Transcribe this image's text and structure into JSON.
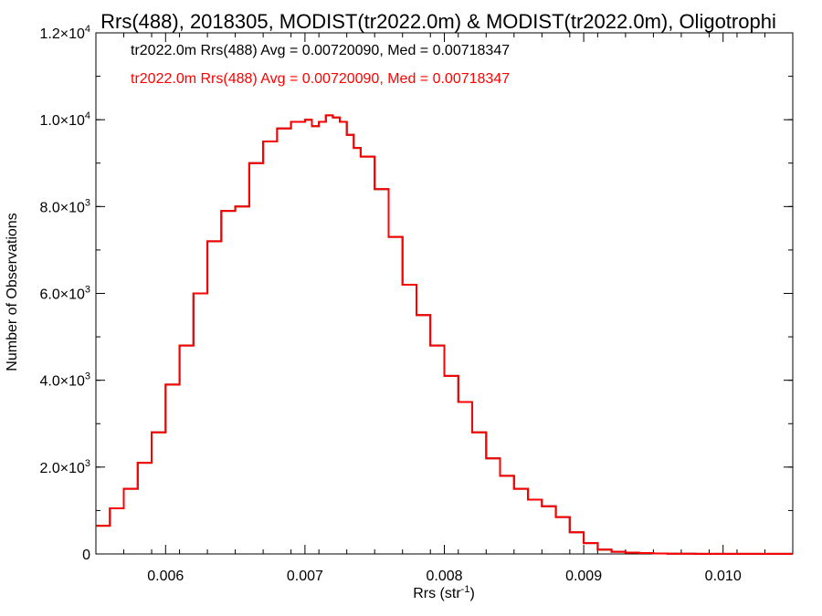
{
  "chart_data": {
    "type": "line",
    "title": "Rrs(488), 2018305, MODIST(tr2022.0m) & MODIST(tr2022.0m), Oligotrophi",
    "xlabel": "Rrs (str",
    "xlabel_sup": "-1",
    "xlabel_close": ")",
    "ylabel": "Number of Observations",
    "xlim": [
      0.0055,
      0.0105
    ],
    "ylim": [
      0,
      12000
    ],
    "x_ticks": [
      {
        "value": 0.006,
        "label": "0.006"
      },
      {
        "value": 0.007,
        "label": "0.007"
      },
      {
        "value": 0.008,
        "label": "0.008"
      },
      {
        "value": 0.009,
        "label": "0.009"
      },
      {
        "value": 0.01,
        "label": "0.010"
      }
    ],
    "y_ticks": [
      {
        "value": 0,
        "mant": "0",
        "exp": ""
      },
      {
        "value": 2000,
        "mant": "2.0×10",
        "exp": "3"
      },
      {
        "value": 4000,
        "mant": "4.0×10",
        "exp": "3"
      },
      {
        "value": 6000,
        "mant": "6.0×10",
        "exp": "3"
      },
      {
        "value": 8000,
        "mant": "8.0×10",
        "exp": "3"
      },
      {
        "value": 10000,
        "mant": "1.0×10",
        "exp": "4"
      },
      {
        "value": 12000,
        "mant": "1.2×10",
        "exp": "4"
      }
    ],
    "annotations": [
      {
        "text": "tr2022.0m Rrs(488) Avg = 0.00720090, Med = 0.00718347",
        "color": "#000000"
      },
      {
        "text": "tr2022.0m Rrs(488) Avg = 0.00720090, Med = 0.00718347",
        "color": "#ff0000"
      }
    ],
    "series": [
      {
        "color": "#000000",
        "x": [
          0.0055,
          0.0056,
          0.0057,
          0.0058,
          0.0059,
          0.006,
          0.0061,
          0.0062,
          0.0063,
          0.0064,
          0.0065,
          0.0066,
          0.0067,
          0.0068,
          0.0069,
          0.007,
          0.00705,
          0.0071,
          0.00715,
          0.0072,
          0.00725,
          0.0073,
          0.00735,
          0.0074,
          0.0075,
          0.0076,
          0.0077,
          0.0078,
          0.0079,
          0.008,
          0.0081,
          0.0082,
          0.0083,
          0.0084,
          0.0085,
          0.0086,
          0.0087,
          0.0088,
          0.0089,
          0.009,
          0.0091,
          0.0092,
          0.0093,
          0.0094,
          0.0095,
          0.0096,
          0.0098,
          0.01,
          0.0102,
          0.0105
        ],
        "y": [
          650,
          1050,
          1500,
          2100,
          2800,
          3900,
          4800,
          6000,
          7200,
          7900,
          8000,
          9000,
          9500,
          9800,
          9950,
          10000,
          9850,
          9950,
          10100,
          10050,
          9950,
          9650,
          9350,
          9150,
          8400,
          7300,
          6200,
          5500,
          4800,
          4100,
          3500,
          2800,
          2200,
          1800,
          1500,
          1250,
          1100,
          850,
          500,
          250,
          100,
          50,
          30,
          20,
          10,
          5,
          3,
          2,
          2,
          2
        ]
      },
      {
        "color": "#ff0000",
        "x": [
          0.0055,
          0.0056,
          0.0057,
          0.0058,
          0.0059,
          0.006,
          0.0061,
          0.0062,
          0.0063,
          0.0064,
          0.0065,
          0.0066,
          0.0067,
          0.0068,
          0.0069,
          0.007,
          0.00705,
          0.0071,
          0.00715,
          0.0072,
          0.00725,
          0.0073,
          0.00735,
          0.0074,
          0.0075,
          0.0076,
          0.0077,
          0.0078,
          0.0079,
          0.008,
          0.0081,
          0.0082,
          0.0083,
          0.0084,
          0.0085,
          0.0086,
          0.0087,
          0.0088,
          0.0089,
          0.009,
          0.0091,
          0.0092,
          0.0093,
          0.0094,
          0.0095,
          0.0096,
          0.0098,
          0.01,
          0.0102,
          0.0105
        ],
        "y": [
          650,
          1050,
          1500,
          2100,
          2800,
          3900,
          4800,
          6000,
          7200,
          7900,
          8000,
          9000,
          9500,
          9800,
          9950,
          10000,
          9850,
          9950,
          10100,
          10050,
          9950,
          9650,
          9350,
          9150,
          8400,
          7300,
          6200,
          5500,
          4800,
          4100,
          3500,
          2800,
          2200,
          1800,
          1500,
          1250,
          1100,
          850,
          500,
          250,
          100,
          50,
          30,
          20,
          10,
          5,
          3,
          2,
          2,
          2
        ]
      }
    ]
  }
}
